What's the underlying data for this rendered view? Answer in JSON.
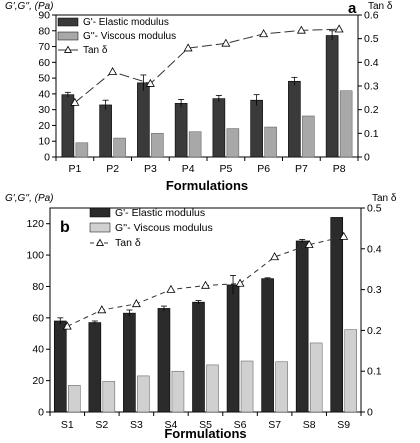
{
  "chart_data": [
    {
      "type": "bar",
      "panel_label": "a",
      "categories": [
        "P1",
        "P2",
        "P3",
        "P4",
        "P5",
        "P6",
        "P7",
        "P8"
      ],
      "xlabel": "Formulations",
      "ylabel": "G',G'', (Pa)",
      "y2label": "Tan δ",
      "ylim": [
        0,
        90
      ],
      "yticks": [
        0,
        10,
        20,
        30,
        40,
        50,
        60,
        70,
        80,
        90
      ],
      "y2lim": [
        0,
        0.6
      ],
      "y2ticks": [
        "0",
        "0.1",
        "0.2",
        "0.3",
        "0.4",
        "0.5",
        "0.6"
      ],
      "legend_position": "top-left",
      "series": [
        {
          "name": "G'- Elastic modulus",
          "type": "bar",
          "axis": "left",
          "color": "#3a3a3a",
          "values": [
            39.5,
            33,
            47,
            34,
            37,
            36,
            48,
            77
          ],
          "errors": [
            1.5,
            3,
            5,
            2.5,
            2,
            3.5,
            2.5,
            3
          ]
        },
        {
          "name": "G''- Viscous modulus",
          "type": "bar",
          "axis": "left",
          "color": "#a8a8a8",
          "values": [
            9,
            12,
            15,
            16,
            18,
            19,
            26,
            42
          ]
        },
        {
          "name": "Tan δ",
          "type": "line",
          "axis": "right",
          "color": "#333333",
          "marker": "open-triangle",
          "dash": "long",
          "values": [
            0.23,
            0.36,
            0.31,
            0.46,
            0.48,
            0.52,
            0.535,
            0.54
          ]
        }
      ]
    },
    {
      "type": "bar",
      "panel_label": "b",
      "categories": [
        "S1",
        "S2",
        "S3",
        "S4",
        "S5",
        "S6",
        "S7",
        "S8",
        "S9"
      ],
      "xlabel": "Formulations",
      "ylabel": "G',G'', (Pa)",
      "y2label": "Tan δ",
      "ylim": [
        0,
        130
      ],
      "yticks": [
        0,
        20,
        40,
        60,
        80,
        100,
        120
      ],
      "y2lim": [
        0,
        0.5
      ],
      "y2ticks": [
        "0",
        "0.1",
        "0.2",
        "0.3",
        "0.4",
        "0.5"
      ],
      "legend_position": "top-left",
      "series": [
        {
          "name": "G'- Elastic modulus",
          "type": "bar",
          "axis": "left",
          "color": "#2b2b2b",
          "values": [
            58,
            57,
            63,
            66,
            70,
            81,
            85,
            109,
            124
          ],
          "errors": [
            2,
            1,
            2,
            1.5,
            1,
            6,
            0.5,
            1,
            0
          ]
        },
        {
          "name": "G''- Viscous modulus",
          "type": "bar",
          "axis": "left",
          "color": "#d0d0d0",
          "values": [
            17,
            19.5,
            23,
            26,
            30,
            32.5,
            32,
            44,
            52.5
          ]
        },
        {
          "name": "Tan δ",
          "type": "line",
          "axis": "right",
          "color": "#333333",
          "marker": "open-triangle",
          "dash": "short",
          "values": [
            0.21,
            0.25,
            0.265,
            0.3,
            0.31,
            0.315,
            0.38,
            0.41,
            0.43
          ]
        }
      ]
    }
  ]
}
